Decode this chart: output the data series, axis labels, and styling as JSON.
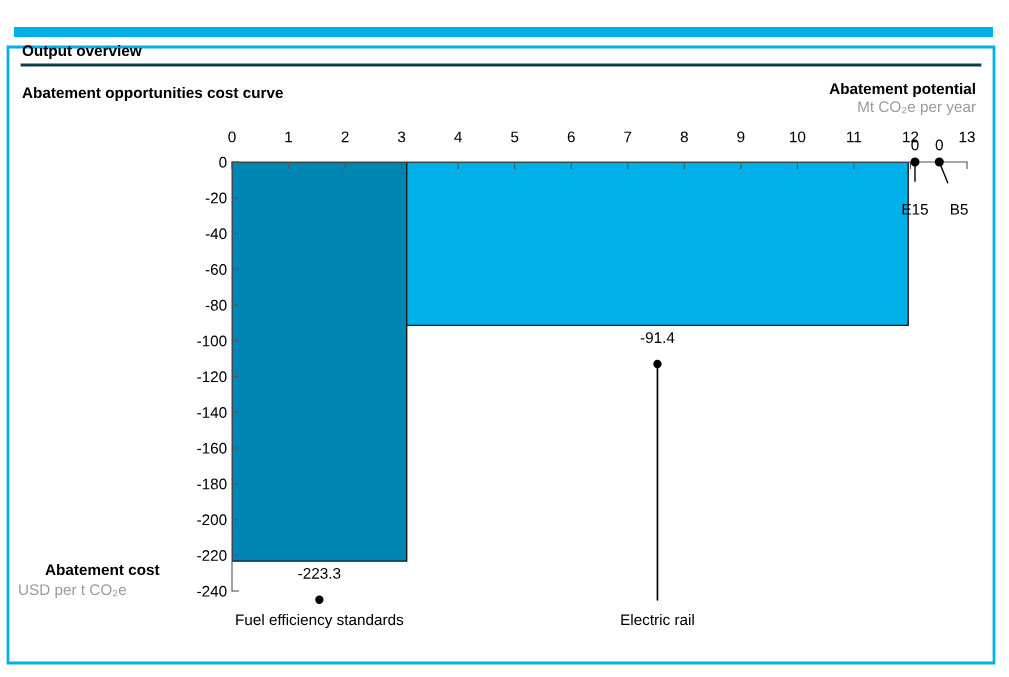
{
  "chart_data": {
    "type": "area",
    "title": "Output overview",
    "subtitle": "Abatement opportunities cost curve",
    "xlabel": "Abatement potential",
    "ylabel": "Abatement cost",
    "annotations": [
      "Mt CO₂e per year",
      "USD per t CO₂e",
      "Fuel efficiency standards",
      "Electric rail",
      {
        "text": "E15",
        "x": 12.08,
        "y": 0
      },
      {
        "text": "B5",
        "x": 12.51,
        "y": 0
      }
    ],
    "series": [
      {
        "color": "#0086b3",
        "x": [
          0,
          1.545,
          3.09
        ],
        "values": [
          -223.3,
          -223.3,
          -223.3
        ],
        "value_labels": [
          null,
          "-223.3",
          null
        ],
        "marker": "none"
      },
      {
        "color": "#00b0e8",
        "x": [
          3.09,
          7.525,
          11.96
        ],
        "values": [
          -91.4,
          -91.4,
          -91.4
        ],
        "value_labels": [
          null,
          "-91.4",
          null
        ],
        "marker": "none"
      },
      {
        "type": "scatter",
        "color": "#000000",
        "x": [
          12.08,
          12.51
        ],
        "values": [
          0,
          0
        ],
        "value_labels": [
          "0",
          "0"
        ],
        "marker": "circle"
      }
    ],
    "xlim": [
      0,
      13
    ],
    "xticks": [
      0,
      1,
      2,
      3,
      4,
      5,
      6,
      7,
      8,
      9,
      10,
      11,
      12,
      13
    ],
    "ylim": [
      -240,
      0
    ],
    "yticks": [
      -240,
      -220,
      -200,
      -180,
      -160,
      -140,
      -120,
      -100,
      -80,
      -60,
      -40,
      -20,
      0
    ],
    "grid": false
  }
}
